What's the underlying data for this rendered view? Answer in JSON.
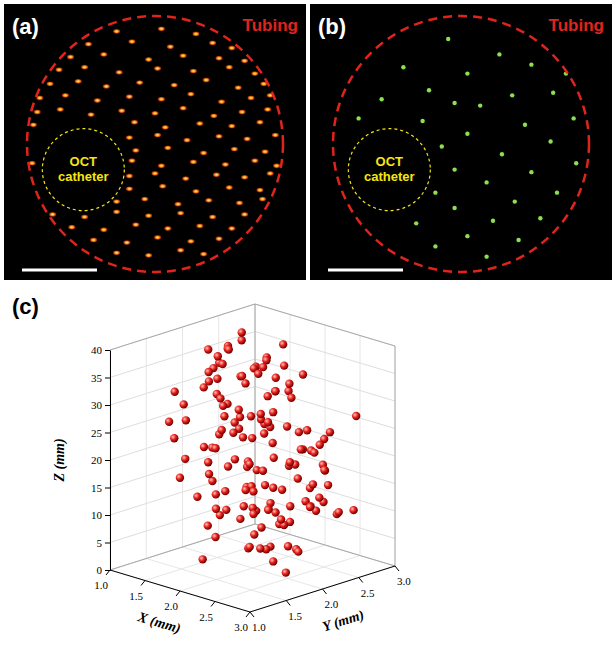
{
  "chart_data": [
    {
      "type": "scatter",
      "title": "(a)",
      "annotations": [
        "Tubing",
        "OCT catheter"
      ],
      "marker": "speckle",
      "color": "#ff9a1f",
      "xlim": [
        -1,
        1
      ],
      "ylim": [
        -1,
        1
      ],
      "tick_labels": false,
      "x": [
        -0.3,
        0.05,
        0.32,
        -0.52,
        -0.18,
        0.12,
        0.45,
        0.6,
        -0.66,
        -0.4,
        -0.05,
        0.22,
        0.5,
        0.7,
        -0.75,
        -0.55,
        -0.28,
        0.02,
        0.3,
        0.58,
        0.78,
        -0.82,
        -0.6,
        -0.38,
        -0.12,
        0.15,
        0.4,
        0.65,
        0.85,
        -0.9,
        -0.7,
        -0.45,
        -0.2,
        0.05,
        0.28,
        0.52,
        0.75,
        0.9,
        -0.92,
        -0.74,
        -0.5,
        -0.26,
        0,
        0.22,
        0.46,
        0.68,
        0.88,
        -0.95,
        -0.16,
        0.08,
        0.35,
        0.6,
        0.82,
        -0.2,
        0.02,
        0.25,
        0.5,
        0.72,
        0.94,
        -0.15,
        0.1,
        0.38,
        0.62,
        0.86,
        -0.96,
        -0.18,
        0.05,
        0.3,
        0.55,
        0.78,
        0.95,
        -0.2,
        0,
        0.24,
        0.48,
        0.7,
        0.9,
        -0.2,
        0.06,
        0.32,
        0.58,
        0.82,
        -0.3,
        -0.08,
        0.18,
        0.42,
        0.66,
        0.84,
        -0.8,
        -0.55,
        -0.3,
        -0.05,
        0.2,
        0.45,
        0.7,
        -0.65,
        -0.4,
        -0.15,
        0.1,
        0.35,
        0.6,
        -0.48,
        -0.22,
        0.02,
        0.28,
        0.5,
        -0.3,
        -0.05,
        0.2,
        0.38
      ],
      "y": [
        0.88,
        0.9,
        0.86,
        0.78,
        0.8,
        0.76,
        0.79,
        0.75,
        0.68,
        0.7,
        0.66,
        0.69,
        0.67,
        0.65,
        0.58,
        0.6,
        0.56,
        0.59,
        0.57,
        0.6,
        0.55,
        0.47,
        0.49,
        0.45,
        0.48,
        0.46,
        0.5,
        0.44,
        0.47,
        0.36,
        0.38,
        0.34,
        0.37,
        0.35,
        0.39,
        0.33,
        0.36,
        0.38,
        0.25,
        0.27,
        0.23,
        0.26,
        0.24,
        0.28,
        0.22,
        0.25,
        0.27,
        0.15,
        0.17,
        0.13,
        0.16,
        0.14,
        0.17,
        0.05,
        0.07,
        0.03,
        0.06,
        0.04,
        0.07,
        -0.05,
        -0.03,
        -0.07,
        -0.04,
        -0.06,
        -0.15,
        -0.13,
        -0.17,
        -0.14,
        -0.16,
        -0.13,
        -0.17,
        -0.25,
        -0.23,
        -0.27,
        -0.24,
        -0.26,
        -0.23,
        -0.35,
        -0.33,
        -0.37,
        -0.34,
        -0.36,
        -0.45,
        -0.43,
        -0.47,
        -0.44,
        -0.46,
        -0.43,
        -0.55,
        -0.57,
        -0.53,
        -0.56,
        -0.54,
        -0.57,
        -0.55,
        -0.65,
        -0.67,
        -0.63,
        -0.66,
        -0.64,
        -0.66,
        -0.75,
        -0.77,
        -0.73,
        -0.76,
        -0.74,
        -0.85,
        -0.87,
        -0.83,
        -0.86
      ]
    },
    {
      "type": "scatter",
      "title": "(b)",
      "annotations": [
        "Tubing",
        "OCT catheter"
      ],
      "marker": "dot",
      "color": "#8be04e",
      "xlim": [
        -1,
        1
      ],
      "ylim": [
        -1,
        1
      ],
      "tick_labels": false,
      "x": [
        -0.1,
        0.3,
        0.55,
        -0.45,
        0.05,
        0.72,
        -0.25,
        0.4,
        -0.62,
        0.15,
        0.88,
        -0.8,
        -0.3,
        0.5,
        0.05,
        0.7,
        -0.15,
        0.32,
        0.9,
        -0.05,
        0.55,
        0.2,
        -0.2,
        0.75,
        0.42,
        -0.05,
        0.62,
        0.25,
        -0.35,
        0.05,
        0.45,
        -0.2,
        0.2,
        0.82,
        -0.05
      ],
      "y": [
        0.82,
        0.7,
        0.62,
        0.6,
        0.55,
        0.4,
        0.42,
        0.38,
        0.35,
        0.3,
        0.2,
        0.2,
        0.18,
        0.15,
        0.08,
        0.02,
        -0.02,
        -0.08,
        -0.15,
        -0.2,
        -0.22,
        -0.3,
        -0.38,
        -0.38,
        -0.45,
        -0.5,
        -0.58,
        -0.6,
        -0.62,
        -0.72,
        -0.75,
        -0.8,
        -0.88,
        0.55,
        0.32
      ]
    },
    {
      "type": "scatter3d",
      "title": "(c)",
      "marker": "sphere",
      "color": "#e8201c",
      "xlabel": "X (mm)",
      "ylabel": "Y (mm)",
      "zlabel": "Z (mm)",
      "xlim": [
        1,
        3
      ],
      "ylim": [
        1,
        3
      ],
      "zlim": [
        0,
        40
      ],
      "xticks": [
        {
          "value": 1,
          "label": "1.0"
        },
        1.5,
        {
          "value": 2,
          "label": "2.0"
        },
        2.5,
        {
          "value": 3,
          "label": "3.0"
        }
      ],
      "yticks": [
        {
          "value": 1,
          "label": "1.0"
        },
        1.5,
        {
          "value": 2,
          "label": "2.0"
        },
        2.5,
        {
          "value": 3,
          "label": "3.0"
        }
      ],
      "zticks": [
        0,
        5,
        10,
        15,
        20,
        25,
        30,
        35,
        40
      ],
      "grid": true,
      "x": [
        1.42,
        2.31,
        1.87,
        2.66,
        1.15,
        2.04,
        2.48,
        1.63,
        2.89,
        1.95,
        2.12,
        1.34,
        2.75,
        1.78,
        2.27,
        1.52,
        2.58,
        1.21,
        2.01,
        2.4,
        1.69,
        2.85,
        1.47,
        2.18,
        1.91,
        2.63,
        1.28,
        2.36,
        1.74,
        2.09,
        2.52,
        1.39,
        2.22,
        1.83,
        2.71,
        1.58,
        2.44,
        1.12,
        1.99,
        2.33,
        1.66,
        2.05,
        2.79,
        1.45,
        2.16,
        1.88,
        2.55,
        1.31,
        2.26,
        1.72,
        2.61,
        1.5,
        2.38,
        1.93,
        1.19,
        2.47,
        1.81,
        2.69,
        1.36,
        2.14,
        1.97,
        2.29,
        1.55,
        2.82,
        1.76,
        2.07,
        1.43,
        2.51,
        1.85,
        2.2,
        1.26,
        2.42,
        1.64,
        2.93,
        2.02,
        1.49,
        2.35,
        1.79,
        2.67,
        1.11,
        2.24,
        1.89,
        1.57,
        2.59,
        1.33,
        2.11,
        2.74,
        1.68,
        2.45,
        1.96,
        1.41,
        2.3,
        2.86,
        1.73,
        2.0,
        1.54,
        2.39,
        1.24,
        2.64,
        1.9,
        2.17,
        1.61,
        2.5,
        1.37,
        2.78,
        1.84,
        2.25,
        1.46,
        2.08,
        2.56,
        1.7,
        2.34,
        1.16,
        1.94,
        2.7,
        1.59,
        2.21,
        1.82,
        2.46,
        1.3,
        2.03,
        2.62,
        1.48,
        2.19,
        1.77,
        2.88,
        1.4,
        2.28,
        1.62,
        2.13,
        1.86,
        2.53,
        1.22,
        2.41,
        1.98,
        1.67,
        2.8,
        1.44,
        2.23,
        1.8,
        2.37,
        1.53,
        2.1,
        2.68,
        1.35,
        2.06,
        1.92,
        2.57,
        1.71,
        2.32
      ],
      "y": [
        2.05,
        1.62,
        2.44,
        1.88,
        2.21,
        1.35,
        2.7,
        1.97,
        2.12,
        1.51,
        2.58,
        2.02,
        1.44,
        2.33,
        1.79,
        2.66,
        1.9,
        2.27,
        1.23,
        2.49,
        1.84,
        2.15,
        2.76,
        1.58,
        2.38,
        1.71,
        2.09,
        1.41,
        2.62,
        1.96,
        2.29,
        1.67,
        2.52,
        2.0,
        1.3,
        2.43,
        1.86,
        2.18,
        2.81,
        1.55,
        1.99,
        2.36,
        1.74,
        2.55,
        1.47,
        2.24,
        1.63,
        2.91,
        2.07,
        1.82,
        2.4,
        1.93,
        2.13,
        1.38,
        2.61,
        1.76,
        2.47,
        2.03,
        1.69,
        2.3,
        1.57,
        2.72,
        1.95,
        2.2,
        1.87,
        1.26,
        2.53,
        2.11,
        1.8,
        2.64,
        2.16,
        1.45,
        2.35,
        1.91,
        2.57,
        2.08,
        1.6,
        2.45,
        1.83,
        2.26,
        1.72,
        2.5,
        2.01,
        1.64,
        2.31,
        1.89,
        2.68,
        1.36,
        2.19,
        1.98,
        2.42,
        1.77,
        2.6,
        2.14,
        1.49,
        2.37,
        1.94,
        2.23,
        1.66,
        2.85,
        1.85,
        2.28,
        1.53,
        2.46,
        2.04,
        1.73,
        2.39,
        1.92,
        2.59,
        1.42,
        2.1,
        2.74,
        1.81,
        2.25,
        1.61,
        2.51,
        1.97,
        2.32,
        1.7,
        2.17,
        2.48,
        1.59,
        2.06,
        2.67,
        1.88,
        2.34,
        1.5,
        2.22,
        2.79,
        1.78,
        1.95,
        2.41,
        1.68,
        2.12,
        2.54,
        1.84,
        2.27,
        1.39,
        2.0,
        2.63,
        1.75,
        2.19,
        2.44,
        1.56,
        2.3,
        2.87,
        1.91,
        2.09,
        2.36,
        1.65
      ],
      "z": [
        3.2,
        17.5,
        29.8,
        11.4,
        35.6,
        22.1,
        8.7,
        26.3,
        14.9,
        38.2,
        19.6,
        5.1,
        31.4,
        24.8,
        12.3,
        33.7,
        1.8,
        27.5,
        16.2,
        9.9,
        36.8,
        21.4,
        6.6,
        28.9,
        18.1,
        13.7,
        32.5,
        23.6,
        4.4,
        37.1,
        15.3,
        25.9,
        10.8,
        34.2,
        20.5,
        2.7,
        30.6,
        17.9,
        7.8,
        26.9,
        39.1,
        12.9,
        22.7,
        31.9,
        16.8,
        5.9,
        28.1,
        19.2,
        35.3,
        9.3,
        24.1,
        14.2,
        33.1,
        3.9,
        21.8,
        29.3,
        11.9,
        37.7,
        18.7,
        7.1,
        26.0,
        15.8,
        32.9,
        20.1,
        10.2,
        36.2,
        23.2,
        4.9,
        30.1,
        13.3,
        18.4,
        38.8,
        8.1,
        25.3,
        16.5,
        34.8,
        22.4,
        1.2,
        29.0,
        12.6,
        20.9,
        6.3,
        27.8,
        35.0,
        14.6,
        24.5,
        10.5,
        31.2,
        17.2,
        3.5,
        37.4,
        19.9,
        28.4,
        9.6,
        23.9,
        15.1,
        33.9,
        6.9,
        26.6,
        21.1,
        11.1,
        30.9,
        17.8,
        38.5,
        13.9,
        25.6,
        2.3,
        32.2,
        19.4,
        8.4,
        27.2,
        22.9,
        14.0,
        36.5,
        5.5,
        24.3,
        16.0,
        34.5,
        20.7,
        10.0,
        31.6,
        7.5,
        28.6,
        18.9,
        39.5,
        12.1,
        23.4,
        4.1,
        35.9,
        15.6,
        25.0,
        13.1,
        30.4,
        20.3,
        8.9,
        37.9,
        17.0,
        27.0,
        11.6,
        33.4,
        6.0,
        22.0,
        29.5,
        15.0,
        36.0,
        19.0,
        9.0,
        26.5,
        32.7,
        21.6
      ]
    }
  ]
}
